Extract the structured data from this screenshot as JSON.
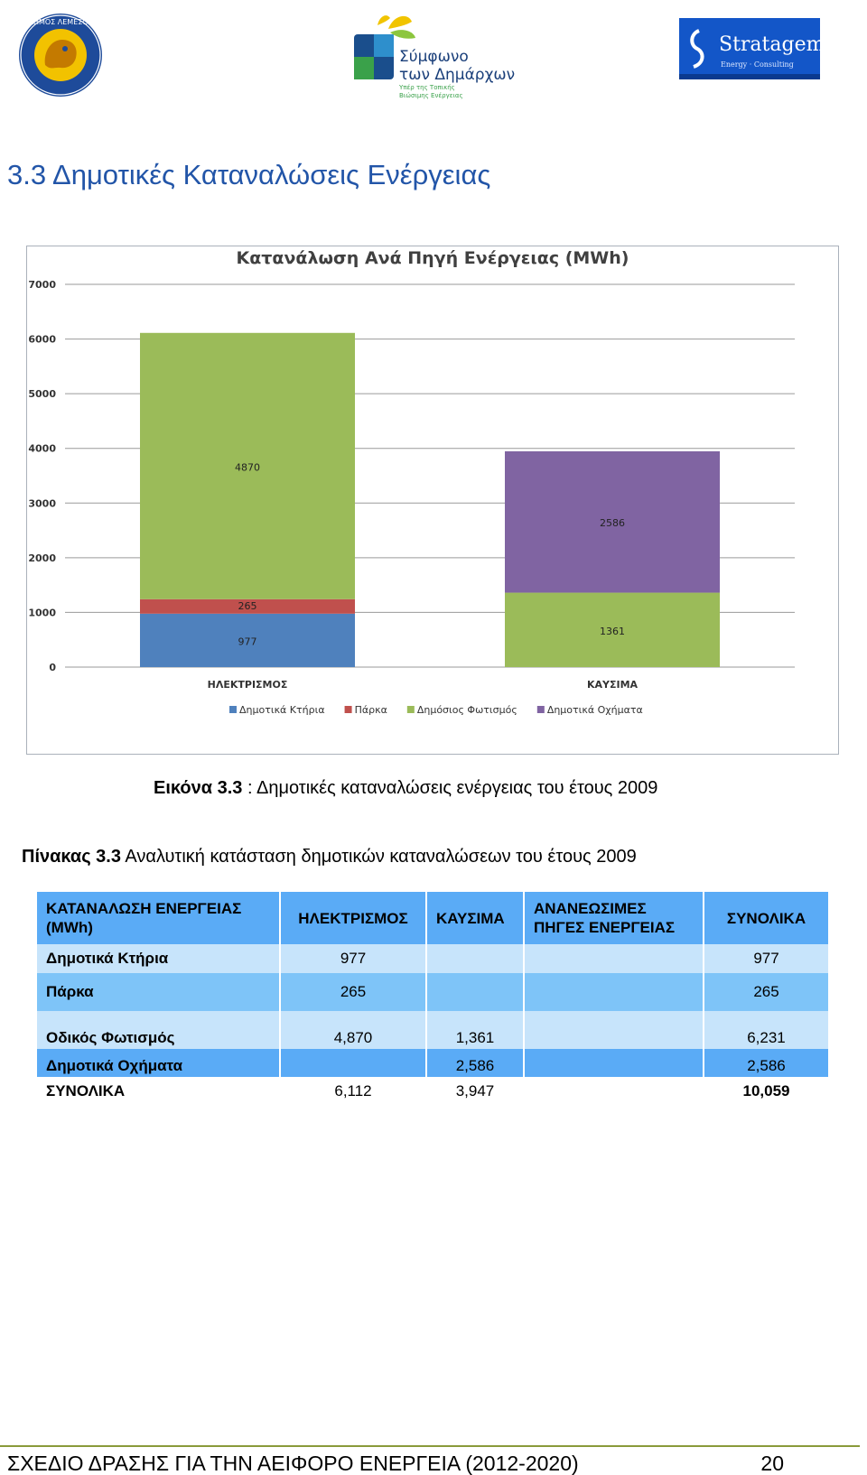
{
  "header": {
    "logo_left": {
      "text": "ΔΗΜΟΣ ΛΕΜΕΣΟΥ",
      "colors": {
        "ring": "#1e4b9a",
        "inner": "#f2c200"
      }
    },
    "logo_center": {
      "line1": "Σύμφωνο",
      "line2": "των Δημάρχων",
      "line3": "Υπέρ της Τοπικής",
      "line4": "Βιώσιμης Ενέργειας"
    },
    "logo_right": {
      "name": "Stratagem",
      "tagline": "Energy · Consulting",
      "color": "#1356c8"
    }
  },
  "section_title": "3.3 Δημοτικές Καταναλώσεις Ενέργειας",
  "chart_data": {
    "type": "bar",
    "stacked": true,
    "title": "Κατανάλωση Ανά Πηγή Ενέργειας (MWh)",
    "categories": [
      "ΗΛΕΚΤΡΙΣΜΟΣ",
      "ΚΑΥΣΙΜΑ"
    ],
    "series": [
      {
        "name": "Δημοτικά Κτήρια",
        "color": "#4f81bd",
        "values": [
          977,
          0
        ],
        "labels": [
          "977",
          ""
        ]
      },
      {
        "name": "Πάρκα",
        "color": "#c0504d",
        "values": [
          265,
          0
        ],
        "labels": [
          "265",
          ""
        ]
      },
      {
        "name": "Δημόσιος Φωτισμός",
        "color": "#9bbb59",
        "values": [
          4870,
          1361
        ],
        "labels": [
          "4870",
          "1361"
        ]
      },
      {
        "name": "Δημοτικά Οχήματα",
        "color": "#8064a2",
        "values": [
          0,
          2586
        ],
        "labels": [
          "",
          "2586"
        ]
      }
    ],
    "yticks": [
      "0",
      "1000",
      "2000",
      "3000",
      "4000",
      "5000",
      "6000",
      "7000"
    ],
    "ylim": [
      0,
      7000
    ],
    "grid": true,
    "legend_position": "bottom"
  },
  "caption": {
    "label": "Εικόνα 3.3",
    "text": " : Δημοτικές καταναλώσεις  ενέργειας του έτους 2009"
  },
  "table_caption": {
    "label": "Πίνακας 3.3",
    "text": "  Αναλυτική κατάσταση δημοτικών καταναλώσεων  του έτους 2009"
  },
  "table": {
    "headers": [
      "ΚΑΤΑΝΑΛΩΣΗ ΕΝΕΡΓΕΙΑΣ (MWh)",
      "ΗΛΕΚΤΡΙΣΜΟΣ",
      "ΚΑΥΣΙΜΑ",
      "ΑΝΑΝΕΩΣΙΜΕΣ ΠΗΓΕΣ ΕΝΕΡΓΕΙΑΣ",
      "ΣΥΝΟΛΙΚΑ"
    ],
    "rows": [
      [
        "Δημοτικά Κτήρια",
        "977",
        "",
        "",
        "977"
      ],
      [
        "Πάρκα",
        "265",
        "",
        "",
        "265"
      ],
      [
        "Οδικός Φωτισμός",
        "4,870",
        "1,361",
        "",
        "6,231"
      ],
      [
        "Δημοτικά Οχήματα",
        "",
        "2,586",
        "",
        "2,586"
      ],
      [
        "ΣΥΝΟΛΙΚΑ",
        "6,112",
        "3,947",
        "",
        "10,059"
      ]
    ]
  },
  "footer": {
    "text": "ΣΧΕΔΙΟ ΔΡΑΣΗΣ ΓΙΑ ΤΗΝ ΑΕΙΦΟΡΟ ΕΝΕΡΓΕΙΑ (2012-2020)",
    "page": "20"
  }
}
